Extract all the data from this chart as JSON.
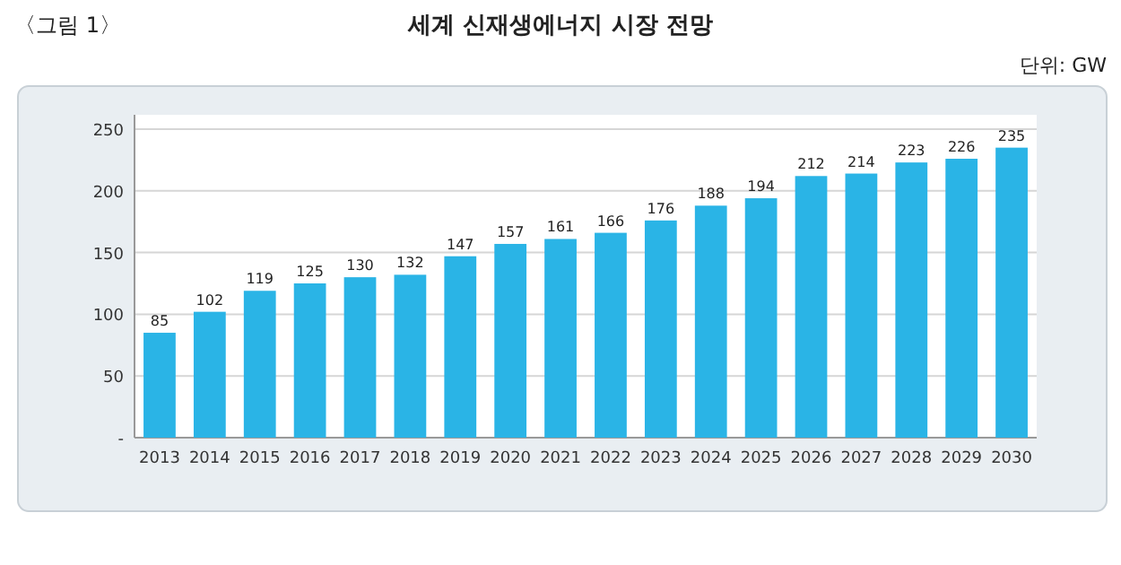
{
  "chart_data": {
    "type": "bar",
    "title": "세계 신재생에너지 시장 전망",
    "annotations": [
      "〈그림 1〉",
      "단위: GW"
    ],
    "categories": [
      "2013",
      "2014",
      "2015",
      "2016",
      "2017",
      "2018",
      "2019",
      "2020",
      "2021",
      "2022",
      "2023",
      "2024",
      "2025",
      "2026",
      "2027",
      "2028",
      "2029",
      "2030"
    ],
    "values": [
      85,
      102,
      119,
      125,
      130,
      132,
      147,
      157,
      161,
      166,
      176,
      188,
      194,
      212,
      214,
      223,
      226,
      235
    ],
    "color": "#2ab4e6",
    "ylim": [
      0,
      250
    ],
    "yticks": [
      {
        "value": 0,
        "label": "-"
      },
      50,
      100,
      150,
      200,
      250
    ],
    "grid": "y",
    "data_labels": true
  }
}
